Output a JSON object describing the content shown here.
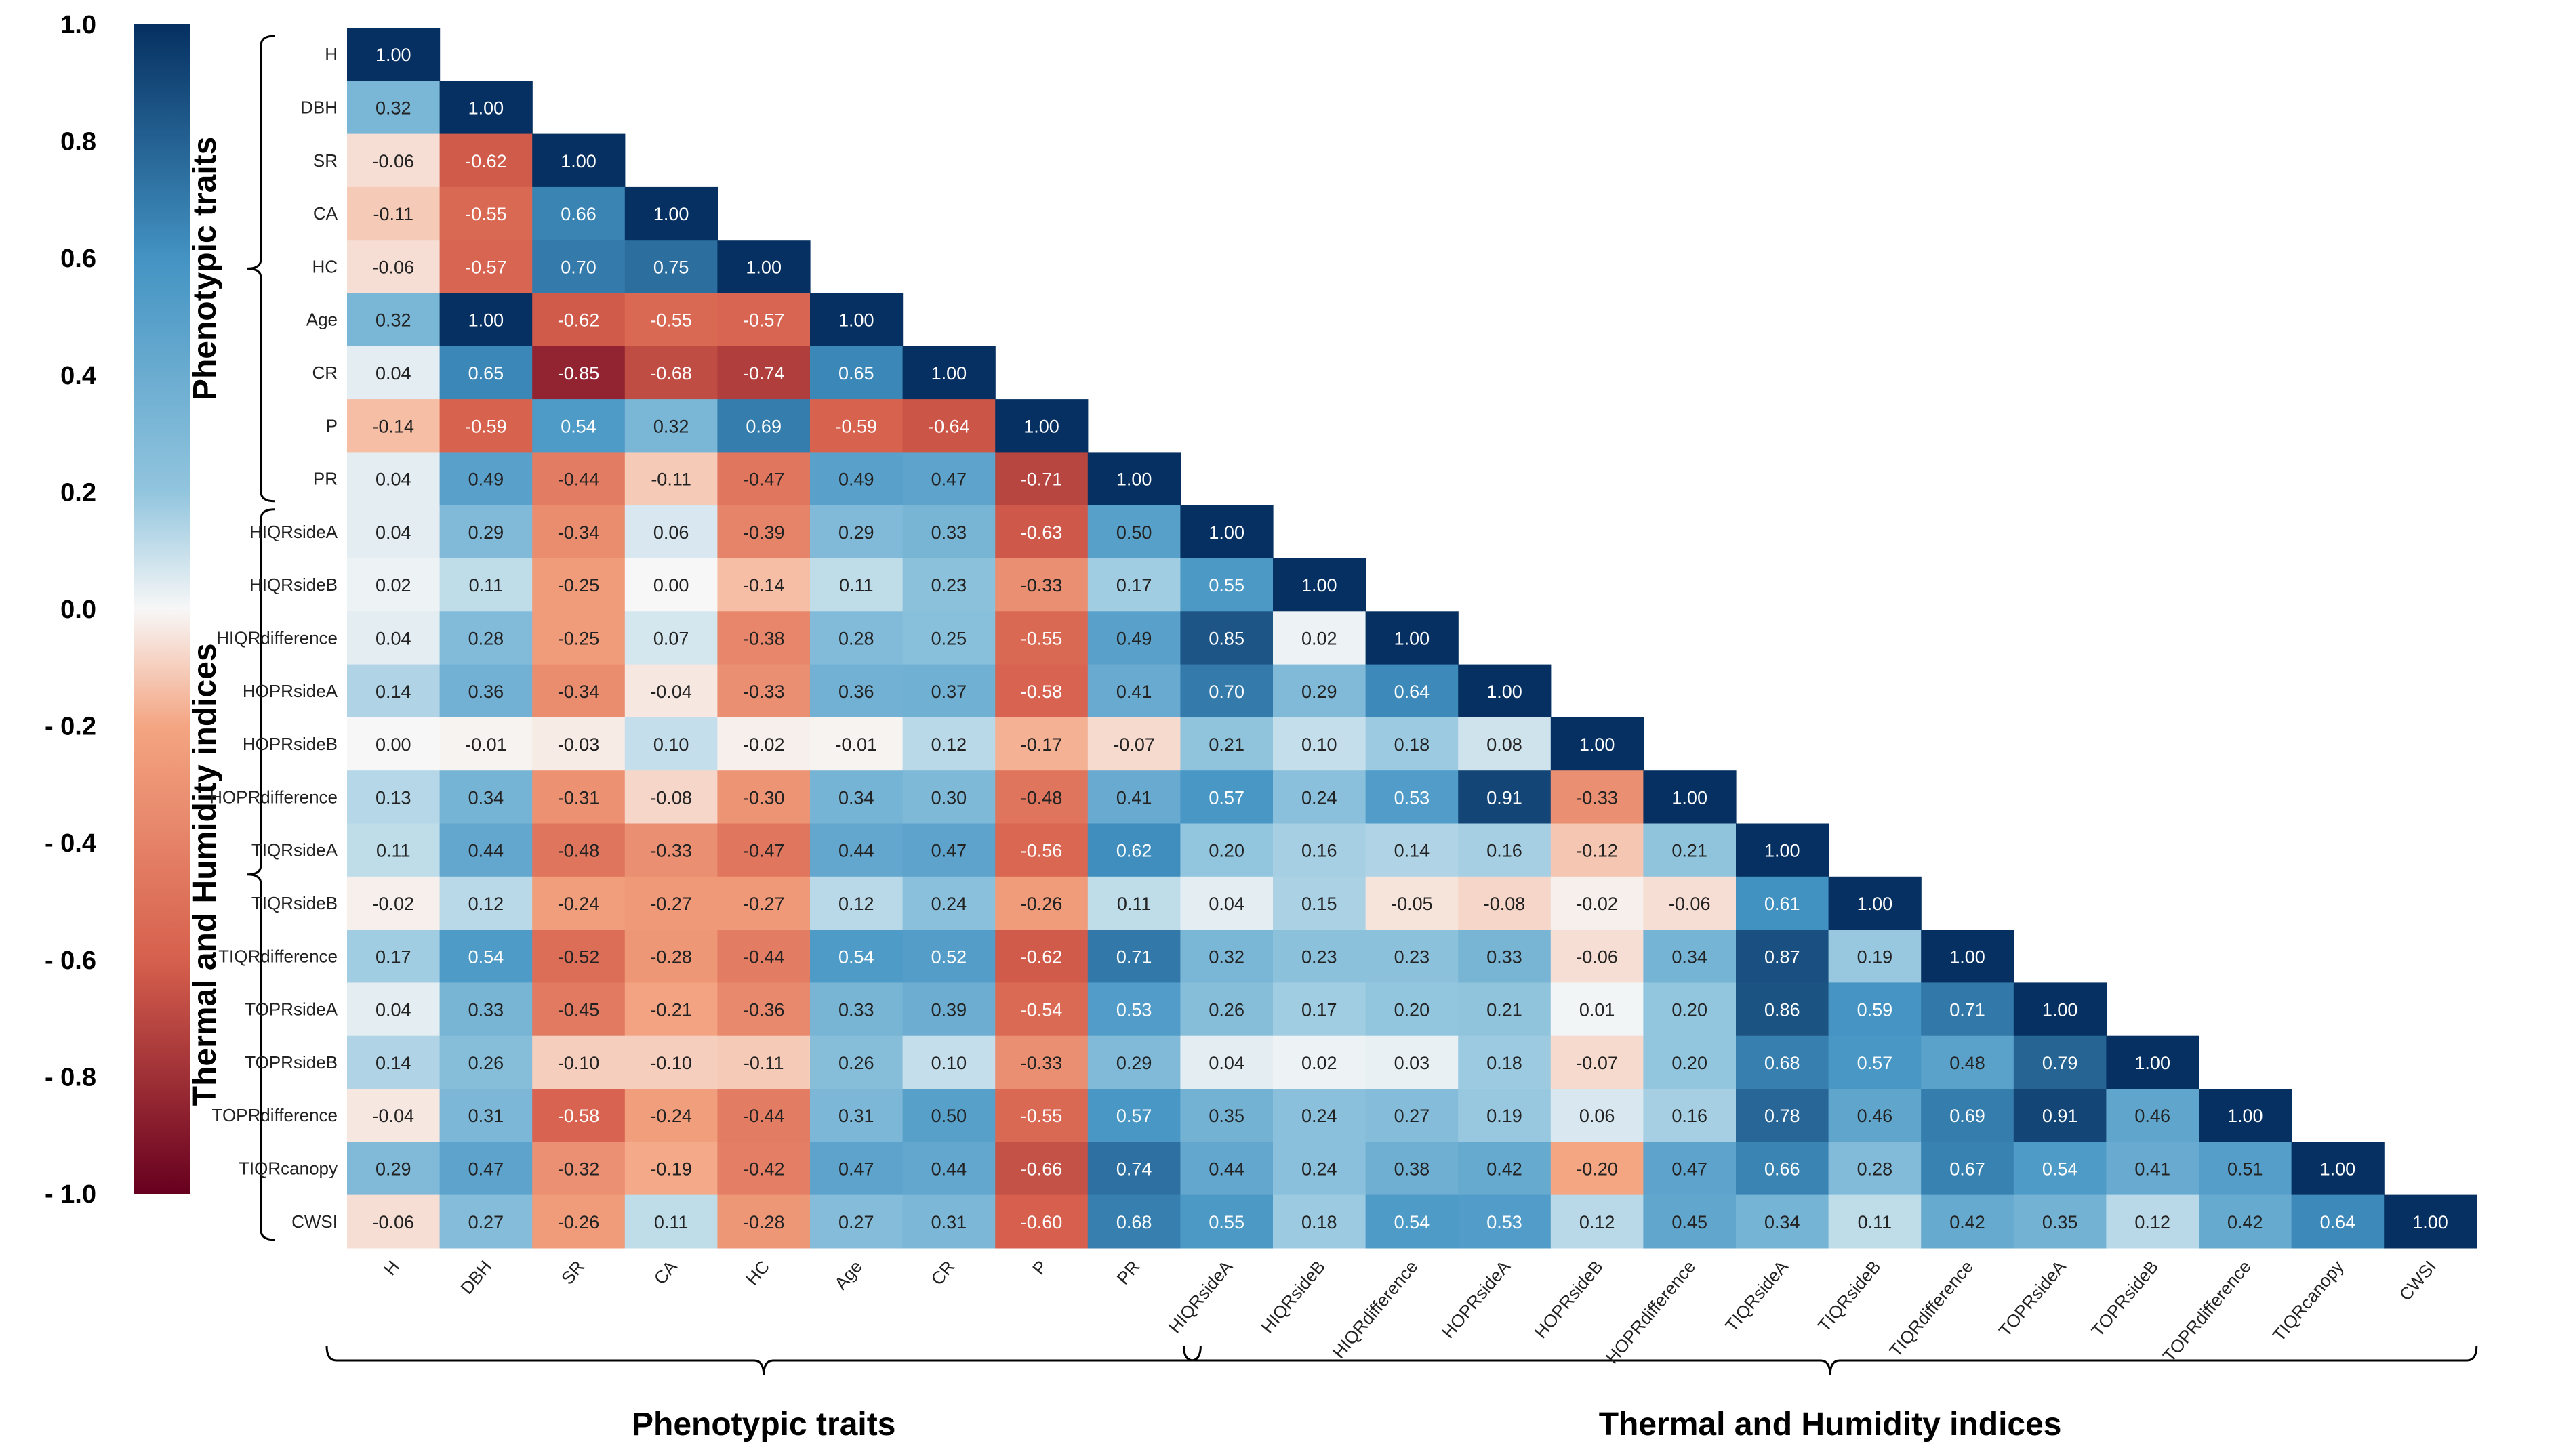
{
  "chart_data": {
    "type": "heatmap",
    "title": "",
    "variables": [
      "H",
      "DBH",
      "SR",
      "CA",
      "HC",
      "Age",
      "CR",
      "P",
      "PR",
      "HIQRsideA",
      "HIQRsideB",
      "HIQRdifference",
      "HOPRsideA",
      "HOPRsideB",
      "HOPRdifference",
      "TIQRsideA",
      "TIQRsideB",
      "TIQRdifference",
      "TOPRsideA",
      "TOPRsideB",
      "TOPRdifference",
      "TIQRcanopy",
      "CWSI"
    ],
    "lower_triangle_values": [
      [
        1.0
      ],
      [
        0.32,
        1.0
      ],
      [
        -0.06,
        -0.62,
        1.0
      ],
      [
        -0.11,
        -0.55,
        0.66,
        1.0
      ],
      [
        -0.06,
        -0.57,
        0.7,
        0.75,
        1.0
      ],
      [
        0.32,
        1.0,
        -0.62,
        -0.55,
        -0.57,
        1.0
      ],
      [
        0.04,
        0.65,
        -0.85,
        -0.68,
        -0.74,
        0.65,
        1.0
      ],
      [
        -0.14,
        -0.59,
        0.54,
        0.32,
        0.69,
        -0.59,
        -0.64,
        1.0
      ],
      [
        0.04,
        0.49,
        -0.44,
        -0.11,
        -0.47,
        0.49,
        0.47,
        -0.71,
        1.0
      ],
      [
        0.04,
        0.29,
        -0.34,
        0.06,
        -0.39,
        0.29,
        0.33,
        -0.63,
        0.5,
        1.0
      ],
      [
        0.02,
        0.11,
        -0.25,
        0.0,
        -0.14,
        0.11,
        0.23,
        -0.33,
        0.17,
        0.55,
        1.0
      ],
      [
        0.04,
        0.28,
        -0.25,
        0.07,
        -0.38,
        0.28,
        0.25,
        -0.55,
        0.49,
        0.85,
        0.02,
        1.0
      ],
      [
        0.14,
        0.36,
        -0.34,
        -0.04,
        -0.33,
        0.36,
        0.37,
        -0.58,
        0.41,
        0.7,
        0.29,
        0.64,
        1.0
      ],
      [
        0.0,
        -0.01,
        -0.03,
        0.1,
        -0.02,
        -0.01,
        0.12,
        -0.17,
        -0.07,
        0.21,
        0.1,
        0.18,
        0.08,
        1.0
      ],
      [
        0.13,
        0.34,
        -0.31,
        -0.08,
        -0.3,
        0.34,
        0.3,
        -0.48,
        0.41,
        0.57,
        0.24,
        0.53,
        0.91,
        -0.33,
        1.0
      ],
      [
        0.11,
        0.44,
        -0.48,
        -0.33,
        -0.47,
        0.44,
        0.47,
        -0.56,
        0.62,
        0.2,
        0.16,
        0.14,
        0.16,
        -0.12,
        0.21,
        1.0
      ],
      [
        -0.02,
        0.12,
        -0.24,
        -0.27,
        -0.27,
        0.12,
        0.24,
        -0.26,
        0.11,
        0.04,
        0.15,
        -0.05,
        -0.08,
        -0.02,
        -0.06,
        0.61,
        1.0
      ],
      [
        0.17,
        0.54,
        -0.52,
        -0.28,
        -0.44,
        0.54,
        0.52,
        -0.62,
        0.71,
        0.32,
        0.23,
        0.23,
        0.33,
        -0.06,
        0.34,
        0.87,
        0.19,
        1.0
      ],
      [
        0.04,
        0.33,
        -0.45,
        -0.21,
        -0.36,
        0.33,
        0.39,
        -0.54,
        0.53,
        0.26,
        0.17,
        0.2,
        0.21,
        0.01,
        0.2,
        0.86,
        0.59,
        0.71,
        1.0
      ],
      [
        0.14,
        0.26,
        -0.1,
        -0.1,
        -0.11,
        0.26,
        0.1,
        -0.33,
        0.29,
        0.04,
        0.02,
        0.03,
        0.18,
        -0.07,
        0.2,
        0.68,
        0.57,
        0.48,
        0.79,
        1.0
      ],
      [
        -0.04,
        0.31,
        -0.58,
        -0.24,
        -0.44,
        0.31,
        0.5,
        -0.55,
        0.57,
        0.35,
        0.24,
        0.27,
        0.19,
        0.06,
        0.16,
        0.78,
        0.46,
        0.69,
        0.91,
        0.46,
        1.0
      ],
      [
        0.29,
        0.47,
        -0.32,
        -0.19,
        -0.42,
        0.47,
        0.44,
        -0.66,
        0.74,
        0.44,
        0.24,
        0.38,
        0.42,
        -0.2,
        0.47,
        0.66,
        0.28,
        0.67,
        0.54,
        0.41,
        0.51,
        1.0
      ],
      [
        -0.06,
        0.27,
        -0.26,
        0.11,
        -0.28,
        0.27,
        0.31,
        -0.6,
        0.68,
        0.55,
        0.18,
        0.54,
        0.53,
        0.12,
        0.45,
        0.34,
        0.11,
        0.42,
        0.35,
        0.12,
        0.42,
        0.64,
        1.0
      ]
    ],
    "value_format": "0.00",
    "colorbar": {
      "range": [
        -1.0,
        1.0
      ],
      "tick_labels": [
        "1.0",
        "0.8",
        "0.6",
        "0.4",
        "0.2",
        "0.0",
        "- 0.2",
        "- 0.4",
        "- 0.6",
        "- 0.8",
        "- 1.0"
      ],
      "tick_values": [
        1.0,
        0.8,
        0.6,
        0.4,
        0.2,
        0.0,
        -0.2,
        -0.4,
        -0.6,
        -0.8,
        -1.0
      ],
      "colors": {
        "neg_end": "#67001f",
        "neg_mid": "#d6604d",
        "neg_light": "#f4a582",
        "neutral": "#f7f7f7",
        "pos_light": "#92c5de",
        "pos_mid": "#4393c3",
        "pos_end": "#053061"
      }
    },
    "groups": [
      {
        "label": "Phenotypic traits",
        "from": 0,
        "to": 8
      },
      {
        "label": "Thermal and Humidity indices",
        "from": 9,
        "to": 22
      }
    ]
  }
}
